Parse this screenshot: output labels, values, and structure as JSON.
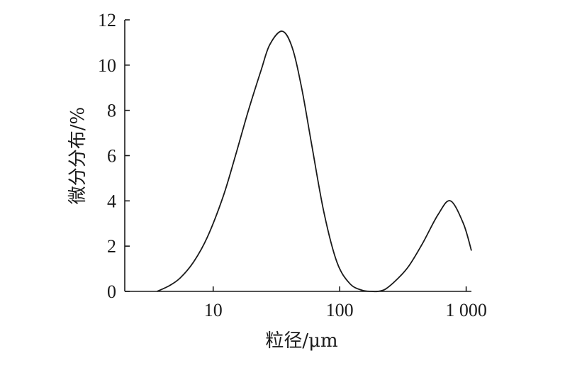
{
  "chart_data": {
    "type": "line",
    "title": "",
    "xlabel": "粒径/μm",
    "ylabel": "微分分布/%",
    "x_scale": "log",
    "xlim": [
      2,
      1100
    ],
    "ylim": [
      0,
      12
    ],
    "x_ticks": [
      {
        "value": 10,
        "label": "10"
      },
      {
        "value": 100,
        "label": "100"
      },
      {
        "value": 1000,
        "label": "1 000"
      }
    ],
    "y_ticks": [
      {
        "value": 0,
        "label": "0"
      },
      {
        "value": 2,
        "label": "2"
      },
      {
        "value": 4,
        "label": "4"
      },
      {
        "value": 6,
        "label": "6"
      },
      {
        "value": 8,
        "label": "8"
      },
      {
        "value": 10,
        "label": "10"
      },
      {
        "value": 12,
        "label": "12"
      }
    ],
    "grid": false,
    "legend": "none",
    "series": [
      {
        "x": [
          3.6,
          4.5,
          5.5,
          7,
          9,
          12,
          15,
          19,
          24,
          28,
          35,
          42,
          50,
          60,
          75,
          95,
          120,
          150,
          180,
          200,
          230,
          280,
          350,
          450,
          600,
          750,
          950,
          1100
        ],
        "values": [
          0.0,
          0.25,
          0.6,
          1.3,
          2.4,
          4.2,
          6.0,
          8.0,
          9.8,
          10.9,
          11.5,
          10.8,
          9.0,
          6.5,
          3.5,
          1.3,
          0.35,
          0.05,
          0.0,
          0.0,
          0.1,
          0.5,
          1.1,
          2.1,
          3.4,
          4.0,
          3.0,
          1.8
        ]
      }
    ],
    "style": {
      "line_color": "#1a1a1a",
      "axis_color": "#1a1a1a"
    }
  }
}
